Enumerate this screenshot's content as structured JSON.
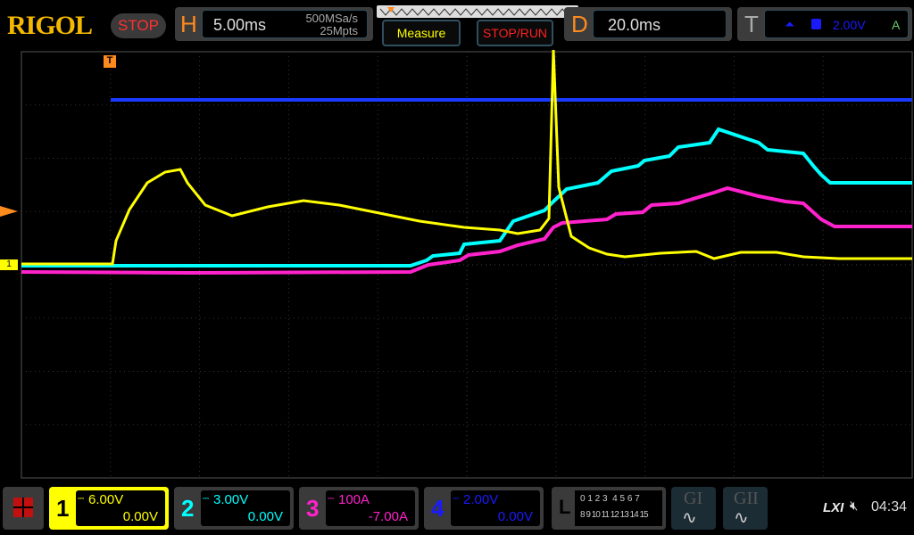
{
  "brand": "RIGOL",
  "run_state": "STOP",
  "horizontal": {
    "label": "H",
    "timebase": "5.00ms",
    "sample_rate": "500MSa/s",
    "memory_depth": "25Mpts"
  },
  "buttons": {
    "measure": "Measure",
    "stop_run": "STOP/RUN"
  },
  "delay": {
    "label": "D",
    "value": "20.0ms"
  },
  "trigger": {
    "label": "T",
    "level": "2.00V",
    "mode": "A",
    "source_icon": "channel-4",
    "slope_icon": "rising-edge-icon"
  },
  "channels": [
    {
      "num": "1",
      "scale": "6.00V",
      "offset": "0.00V",
      "color": "#ffff00",
      "active": true
    },
    {
      "num": "2",
      "scale": "3.00V",
      "offset": "0.00V",
      "color": "#00ffff"
    },
    {
      "num": "3",
      "scale": "100A",
      "offset": "-7.00A",
      "color": "#ff22cc"
    },
    {
      "num": "4",
      "scale": "2.00V",
      "offset": "0.00V",
      "color": "#1a1aff"
    }
  ],
  "logic": {
    "label": "L",
    "row1": "0 1 2 3  4 5 6 7",
    "row2": "8 9 10 11 12 13 14 15"
  },
  "generators": [
    "GI",
    "GII"
  ],
  "status": {
    "lxi": "LXI",
    "time": "04:34",
    "speaker_icon": "speaker-muted-icon"
  },
  "markers": {
    "trigger_pos": "T",
    "ch1": "1"
  }
}
